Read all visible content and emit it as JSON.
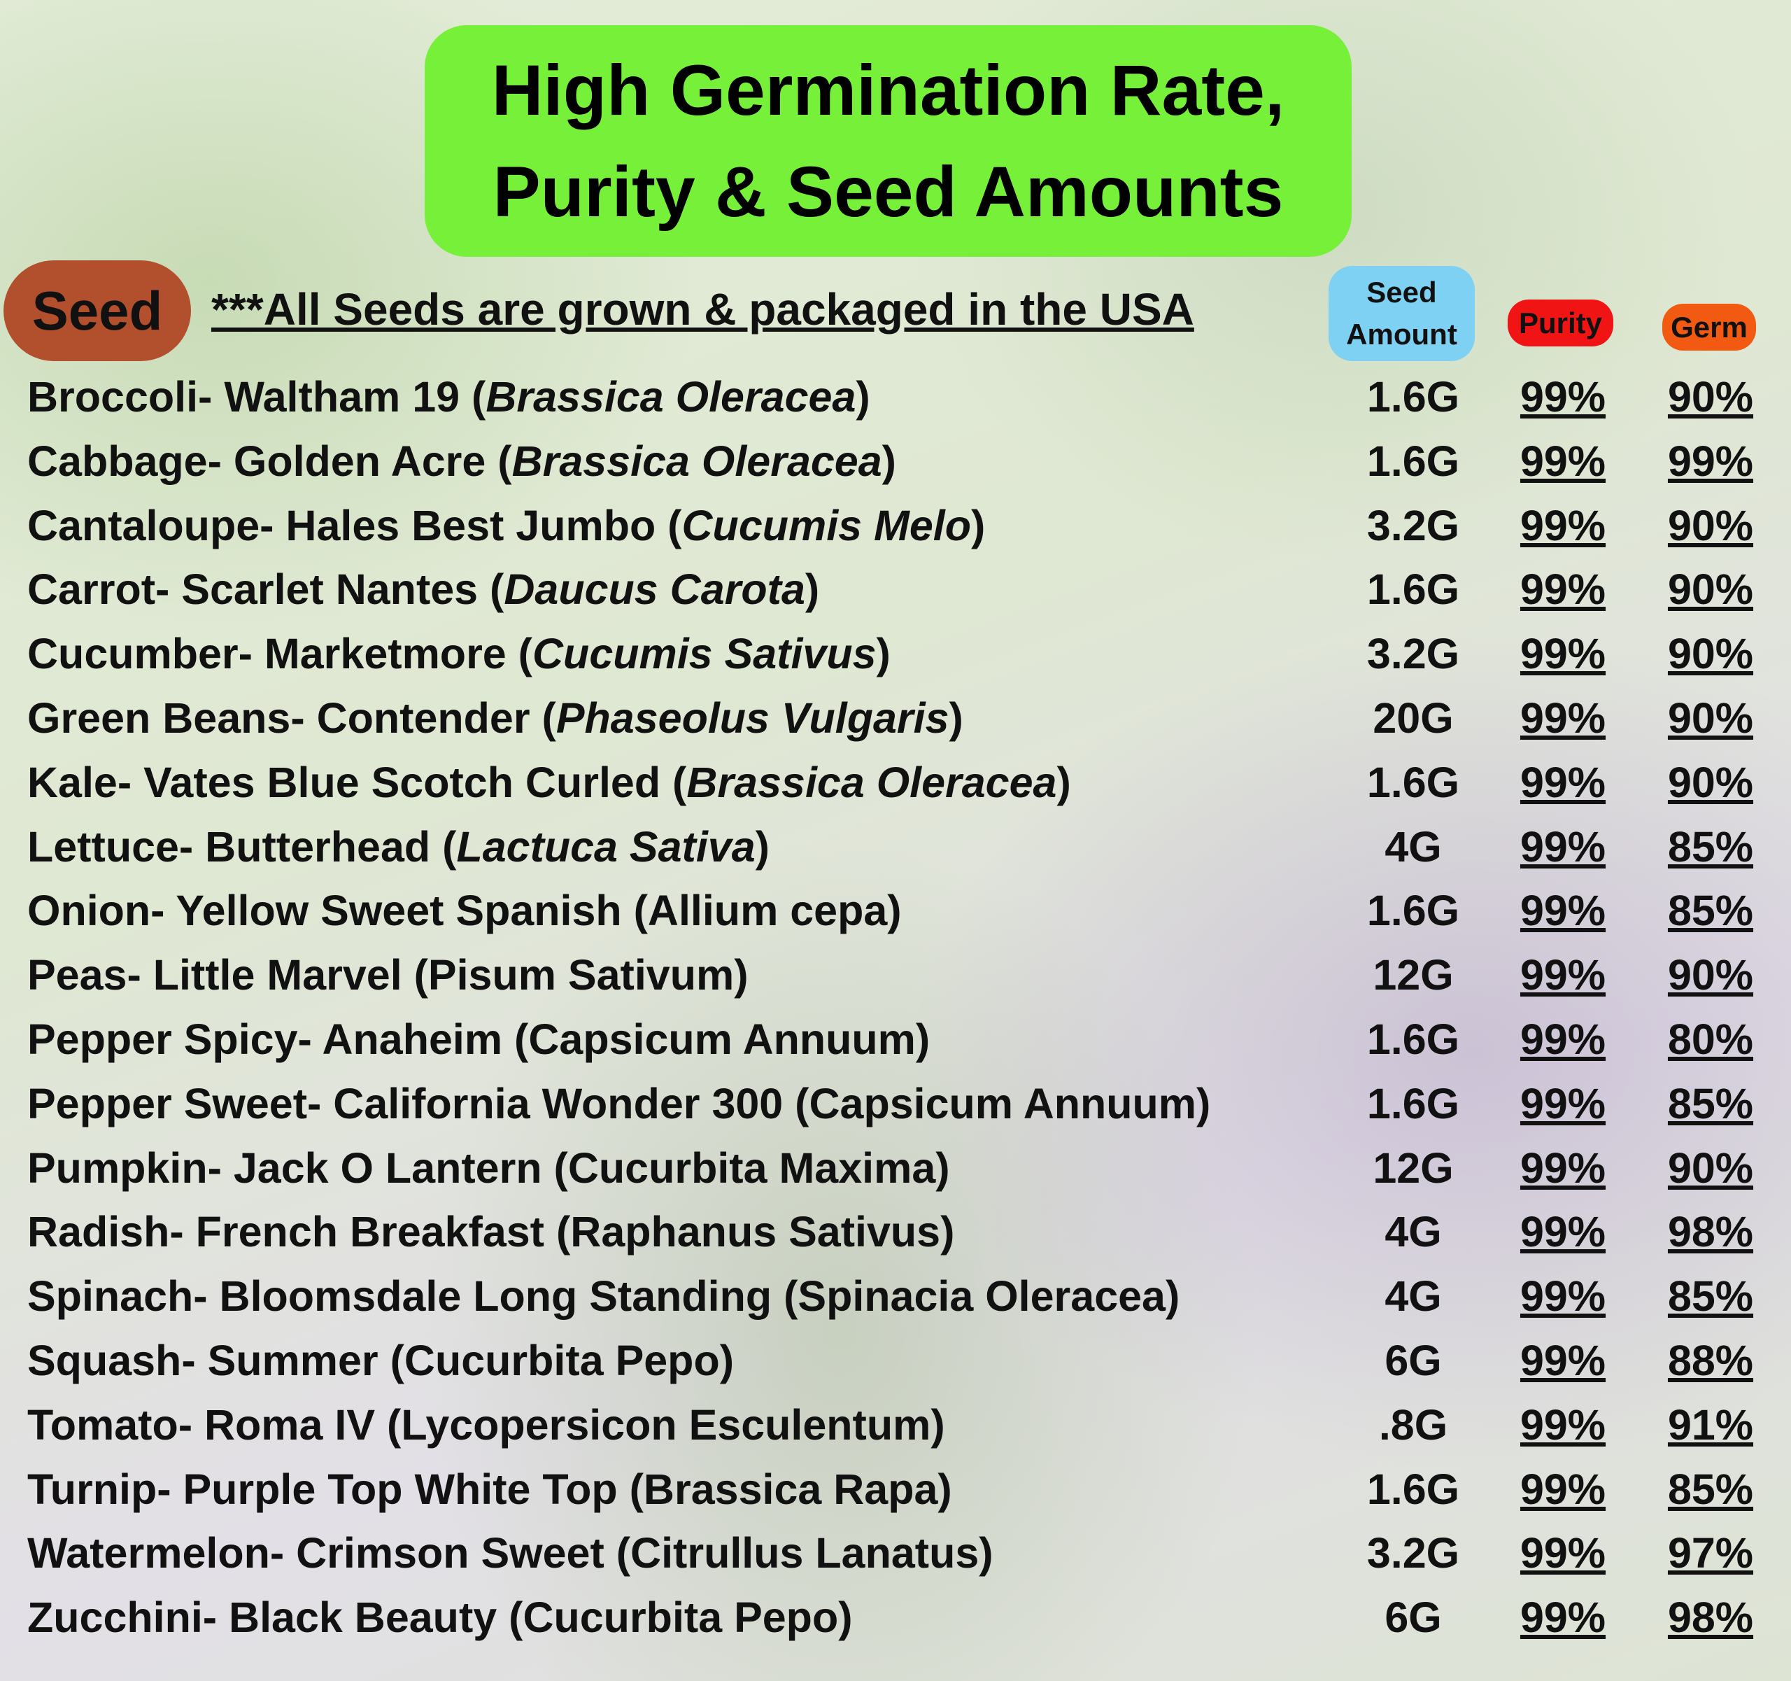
{
  "header": {
    "title_lines": [
      "High Germination Rate,",
      "Purity & Seed Amounts"
    ]
  },
  "seed_label": "Seed",
  "note": "***All Seeds are grown & packaged in the USA",
  "columns": {
    "amount": [
      "Seed",
      "Amount"
    ],
    "purity": "Purity",
    "germ": "Germ"
  },
  "rows": [
    {
      "name": "Broccoli- Waltham 19 (",
      "scientific": "Brassica Oleracea",
      "end": ")",
      "amount": "1.6G",
      "purity": "99%",
      "germ": "90%"
    },
    {
      "name": "Cabbage- Golden Acre (",
      "scientific": "Brassica Oleracea",
      "end": ")",
      "amount": "1.6G",
      "purity": "99%",
      "germ": "99%"
    },
    {
      "name": "Cantaloupe- Hales Best Jumbo (",
      "scientific": "Cucumis Melo",
      "end": ")",
      "amount": "3.2G",
      "purity": "99%",
      "germ": "90%"
    },
    {
      "name": "Carrot- Scarlet Nantes (",
      "scientific": "Daucus Carota",
      "end": ")",
      "amount": "1.6G",
      "purity": "99%",
      "germ": "90%"
    },
    {
      "name": "Cucumber- Marketmore (",
      "scientific": "Cucumis Sativus",
      "end": ")",
      "amount": "3.2G",
      "purity": "99%",
      "germ": "90%"
    },
    {
      "name": "Green Beans- Contender (",
      "scientific": "Phaseolus Vulgaris",
      "end": ")",
      "amount": "20G",
      "purity": "99%",
      "germ": "90%"
    },
    {
      "name": "Kale- Vates Blue Scotch Curled (",
      "scientific": "Brassica Oleracea",
      "end": ")",
      "amount": "1.6G",
      "purity": "99%",
      "germ": "90%"
    },
    {
      "name": "Lettuce- Butterhead (",
      "scientific": "Lactuca Sativa",
      "end": ")",
      "amount": "4G",
      "purity": "99%",
      "germ": "85%"
    },
    {
      "name": "Onion- Yellow Sweet Spanish (Allium cepa)",
      "amount": "1.6G",
      "purity": "99%",
      "germ": "85%"
    },
    {
      "name": "Peas- Little Marvel (Pisum Sativum)",
      "amount": "12G",
      "purity": "99%",
      "germ": "90%"
    },
    {
      "name": "Pepper Spicy- Anaheim (Capsicum Annuum)",
      "amount": "1.6G",
      "purity": "99%",
      "germ": "80%"
    },
    {
      "name": "Pepper Sweet- California Wonder 300 (Capsicum Annuum)",
      "amount": "1.6G",
      "purity": "99%",
      "germ": "85%"
    },
    {
      "name": "Pumpkin- Jack O Lantern (Cucurbita Maxima)",
      "amount": "12G",
      "purity": "99%",
      "germ": "90%"
    },
    {
      "name": "Radish- French Breakfast (Raphanus Sativus)",
      "amount": "4G",
      "purity": "99%",
      "germ": "98%"
    },
    {
      "name": "Spinach- Bloomsdale Long Standing (Spinacia Oleracea)",
      "amount": "4G",
      "purity": "99%",
      "germ": "85%"
    },
    {
      "name": "Squash- Summer (Cucurbita Pepo)",
      "amount": "6G",
      "purity": "99%",
      "germ": "88%"
    },
    {
      "name": "Tomato- Roma IV (Lycopersicon Esculentum)",
      "amount": ".8G",
      "purity": "99%",
      "germ": "91%"
    },
    {
      "name": "Turnip- Purple Top White Top (Brassica Rapa)",
      "amount": "1.6G",
      "purity": "99%",
      "germ": "85%"
    },
    {
      "name": "Watermelon- Crimson Sweet (Citrullus Lanatus)",
      "amount": "3.2G",
      "purity": "99%",
      "germ": "97%"
    },
    {
      "name": "Zucchini- Black Beauty (Cucurbita Pepo)",
      "amount": "6G",
      "purity": "99%",
      "germ": "98%"
    }
  ]
}
